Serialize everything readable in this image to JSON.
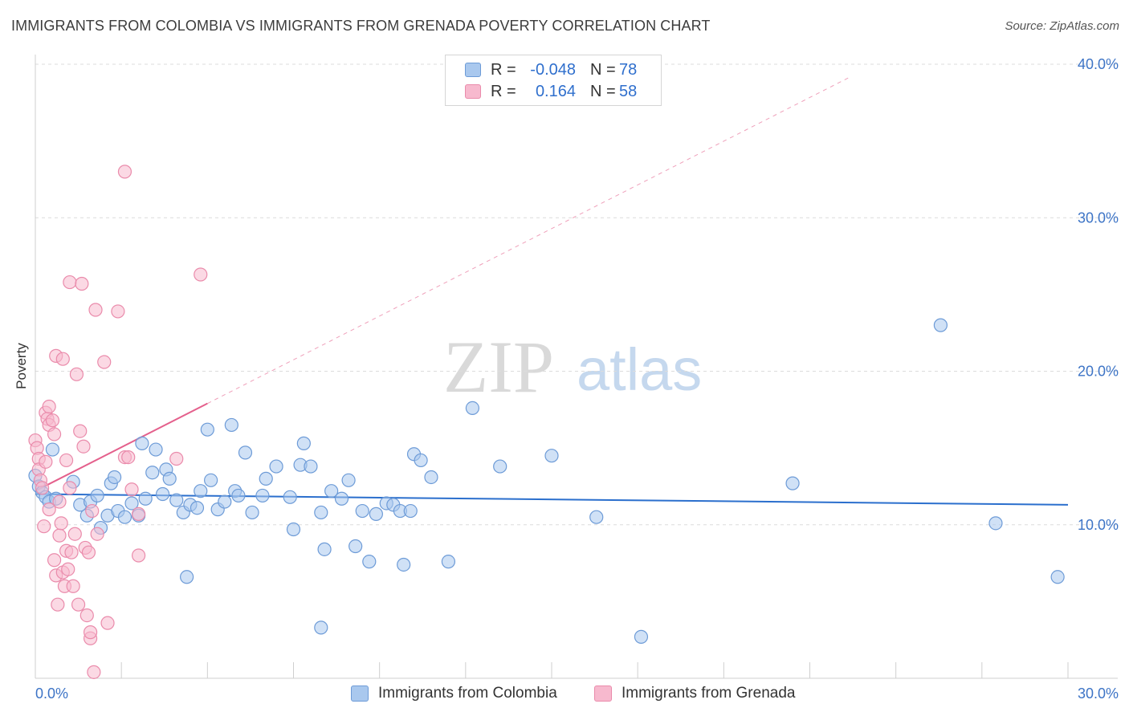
{
  "header": {
    "title": "IMMIGRANTS FROM COLOMBIA VS IMMIGRANTS FROM GRENADA POVERTY CORRELATION CHART",
    "source": "Source: ZipAtlas.com"
  },
  "watermark": {
    "zip": "ZIP",
    "atlas": "atlas"
  },
  "legend": {
    "rows": [
      {
        "r_label": "R =",
        "r_value": "-0.048",
        "n_label": "N =",
        "n_value": "78"
      },
      {
        "r_label": "R =",
        "r_value": "0.164",
        "n_label": "N =",
        "n_value": "58"
      }
    ]
  },
  "bottom_legend": {
    "colombia": "Immigrants from Colombia",
    "grenada": "Immigrants from Grenada"
  },
  "colors": {
    "colombia_fill": "#a9c8ee",
    "colombia_stroke": "#6d9bd7",
    "colombia_line": "#2b6fcd",
    "grenada_fill": "#f7b9ce",
    "grenada_stroke": "#ea8bab",
    "grenada_line": "#e4608c",
    "grid": "#dcdcdc",
    "axis_text": "#3d74c6"
  },
  "chart_data": {
    "type": "scatter",
    "title": "IMMIGRANTS FROM COLOMBIA VS IMMIGRANTS FROM GRENADA POVERTY CORRELATION CHART",
    "xlabel": "",
    "ylabel": "Poverty",
    "xlim": [
      0,
      30
    ],
    "ylim": [
      0,
      40
    ],
    "x_tick_labels": [
      {
        "value": 0,
        "label": "0.0%"
      },
      {
        "value": 30,
        "label": "30.0%"
      }
    ],
    "y_tick_labels": [
      {
        "value": 10,
        "label": "10.0%"
      },
      {
        "value": 20,
        "label": "20.0%"
      },
      {
        "value": 30,
        "label": "30.0%"
      },
      {
        "value": 40,
        "label": "40.0%"
      }
    ],
    "grid": true,
    "legend_position": "top-center",
    "series": [
      {
        "name": "Immigrants from Colombia",
        "R": -0.048,
        "N": 78,
        "trend": {
          "x": [
            0,
            30
          ],
          "y": [
            12.0,
            11.3
          ],
          "style": "solid"
        },
        "points": [
          [
            0.0,
            13.2
          ],
          [
            0.1,
            12.5
          ],
          [
            0.2,
            12.1
          ],
          [
            0.3,
            11.8
          ],
          [
            0.4,
            11.5
          ],
          [
            0.5,
            14.9
          ],
          [
            0.6,
            11.7
          ],
          [
            1.1,
            12.8
          ],
          [
            1.3,
            11.3
          ],
          [
            1.5,
            10.6
          ],
          [
            1.6,
            11.5
          ],
          [
            1.8,
            11.9
          ],
          [
            1.9,
            9.8
          ],
          [
            2.1,
            10.6
          ],
          [
            2.2,
            12.7
          ],
          [
            2.3,
            13.1
          ],
          [
            2.4,
            10.9
          ],
          [
            2.6,
            10.5
          ],
          [
            2.8,
            11.4
          ],
          [
            3.0,
            10.6
          ],
          [
            3.1,
            15.3
          ],
          [
            3.2,
            11.7
          ],
          [
            3.4,
            13.4
          ],
          [
            3.5,
            14.9
          ],
          [
            3.7,
            12.0
          ],
          [
            3.8,
            13.6
          ],
          [
            3.9,
            13.0
          ],
          [
            4.1,
            11.6
          ],
          [
            4.3,
            10.8
          ],
          [
            4.4,
            6.6
          ],
          [
            4.5,
            11.3
          ],
          [
            4.7,
            11.1
          ],
          [
            4.8,
            12.2
          ],
          [
            5.0,
            16.2
          ],
          [
            5.1,
            12.9
          ],
          [
            5.3,
            11.0
          ],
          [
            5.5,
            11.5
          ],
          [
            5.7,
            16.5
          ],
          [
            5.8,
            12.2
          ],
          [
            5.9,
            11.9
          ],
          [
            6.1,
            14.7
          ],
          [
            6.3,
            10.8
          ],
          [
            6.6,
            11.9
          ],
          [
            6.7,
            13.0
          ],
          [
            7.0,
            13.8
          ],
          [
            7.4,
            11.8
          ],
          [
            7.5,
            9.7
          ],
          [
            7.7,
            13.9
          ],
          [
            7.8,
            15.3
          ],
          [
            8.0,
            13.8
          ],
          [
            8.3,
            10.8
          ],
          [
            8.4,
            8.4
          ],
          [
            8.6,
            12.2
          ],
          [
            8.9,
            11.7
          ],
          [
            9.1,
            12.9
          ],
          [
            9.3,
            8.6
          ],
          [
            9.5,
            10.9
          ],
          [
            9.7,
            7.6
          ],
          [
            9.9,
            10.7
          ],
          [
            10.2,
            11.4
          ],
          [
            10.4,
            11.3
          ],
          [
            10.6,
            10.9
          ],
          [
            10.7,
            7.4
          ],
          [
            10.9,
            10.9
          ],
          [
            11.0,
            14.6
          ],
          [
            11.2,
            14.2
          ],
          [
            11.5,
            13.1
          ],
          [
            12.0,
            7.6
          ],
          [
            12.7,
            17.6
          ],
          [
            13.5,
            13.8
          ],
          [
            15.0,
            14.5
          ],
          [
            8.3,
            3.3
          ],
          [
            16.3,
            10.5
          ],
          [
            17.6,
            2.7
          ],
          [
            22.0,
            12.7
          ],
          [
            26.3,
            23.0
          ],
          [
            27.9,
            10.1
          ],
          [
            29.7,
            6.6
          ]
        ]
      },
      {
        "name": "Immigrants from Grenada",
        "R": 0.164,
        "N": 58,
        "trend": {
          "x": [
            0,
            5.0
          ],
          "y": [
            12.2,
            17.9
          ],
          "style": "solid",
          "extension": {
            "x": [
              5.0,
              23.7
            ],
            "y": [
              17.9,
              39.2
            ],
            "style": "dashed"
          }
        },
        "points": [
          [
            0.0,
            15.5
          ],
          [
            0.05,
            15.0
          ],
          [
            0.1,
            14.3
          ],
          [
            0.1,
            13.6
          ],
          [
            0.15,
            12.9
          ],
          [
            0.2,
            12.4
          ],
          [
            0.25,
            9.9
          ],
          [
            0.3,
            17.3
          ],
          [
            0.35,
            16.9
          ],
          [
            0.4,
            16.5
          ],
          [
            0.4,
            17.7
          ],
          [
            0.5,
            16.8
          ],
          [
            0.55,
            7.7
          ],
          [
            0.6,
            21.0
          ],
          [
            0.6,
            6.7
          ],
          [
            0.65,
            4.8
          ],
          [
            0.7,
            9.3
          ],
          [
            0.75,
            10.1
          ],
          [
            0.8,
            20.8
          ],
          [
            0.8,
            6.9
          ],
          [
            0.85,
            6.0
          ],
          [
            0.9,
            14.2
          ],
          [
            0.9,
            8.3
          ],
          [
            0.95,
            7.1
          ],
          [
            1.0,
            25.8
          ],
          [
            1.0,
            12.4
          ],
          [
            1.05,
            8.2
          ],
          [
            1.1,
            6.0
          ],
          [
            1.15,
            9.4
          ],
          [
            1.2,
            19.8
          ],
          [
            1.25,
            4.8
          ],
          [
            1.3,
            16.1
          ],
          [
            1.35,
            25.7
          ],
          [
            1.4,
            15.1
          ],
          [
            1.45,
            8.5
          ],
          [
            1.5,
            4.1
          ],
          [
            1.55,
            8.2
          ],
          [
            1.6,
            2.6
          ],
          [
            1.6,
            3.0
          ],
          [
            1.65,
            10.9
          ],
          [
            1.7,
            0.4
          ],
          [
            1.75,
            24.0
          ],
          [
            1.8,
            9.4
          ],
          [
            2.0,
            20.6
          ],
          [
            2.1,
            3.6
          ],
          [
            2.4,
            23.9
          ],
          [
            2.6,
            33.0
          ],
          [
            2.6,
            14.4
          ],
          [
            2.7,
            14.4
          ],
          [
            2.8,
            12.3
          ],
          [
            3.0,
            8.0
          ],
          [
            3.0,
            10.7
          ],
          [
            4.1,
            14.3
          ],
          [
            4.8,
            26.3
          ],
          [
            0.4,
            11.0
          ],
          [
            0.7,
            11.5
          ],
          [
            0.3,
            14.1
          ],
          [
            0.55,
            15.9
          ]
        ]
      }
    ]
  }
}
